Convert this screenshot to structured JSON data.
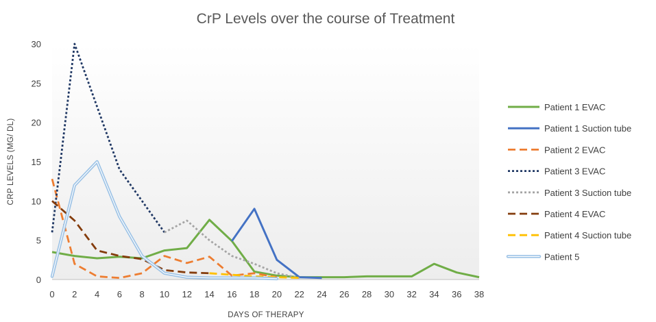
{
  "chart_data": {
    "type": "line",
    "title": "CrP Levels over the course of Treatment",
    "xlabel": "DAYS OF THERAPY",
    "ylabel": "CRP LEVELS (MG/ DL)",
    "xlim": [
      0,
      38
    ],
    "ylim": [
      0,
      30
    ],
    "x_ticks": [
      "0",
      "2",
      "4",
      "6",
      "8",
      "10",
      "12",
      "14",
      "16",
      "18",
      "20",
      "22",
      "24",
      "26",
      "28",
      "30",
      "32",
      "34",
      "36",
      "38"
    ],
    "y_ticks": [
      "0",
      "5",
      "10",
      "15",
      "20",
      "25",
      "30"
    ],
    "grid": false,
    "legend_position": "right",
    "series": [
      {
        "name": "Patient 1 EVAC",
        "color": "#70ad47",
        "style": "solid",
        "points": [
          [
            0,
            3.5
          ],
          [
            2,
            3.0
          ],
          [
            4,
            2.7
          ],
          [
            6,
            2.9
          ],
          [
            8,
            2.7
          ],
          [
            10,
            3.7
          ],
          [
            12,
            4.0
          ],
          [
            14,
            7.6
          ],
          [
            16,
            4.9
          ],
          [
            18,
            1.0
          ],
          [
            20,
            0.5
          ],
          [
            22,
            0.3
          ],
          [
            24,
            0.3
          ],
          [
            26,
            0.3
          ],
          [
            28,
            0.4
          ],
          [
            30,
            0.4
          ],
          [
            32,
            0.4
          ],
          [
            34,
            2.0
          ],
          [
            36,
            0.9
          ],
          [
            38,
            0.3
          ]
        ]
      },
      {
        "name": "Patient 1 Suction tube",
        "color": "#4472c4",
        "style": "solid",
        "points": [
          [
            16,
            4.9
          ],
          [
            18,
            9.0
          ],
          [
            20,
            2.5
          ],
          [
            22,
            0.3
          ],
          [
            24,
            0.2
          ]
        ]
      },
      {
        "name": "Patient 2 EVAC",
        "color": "#ed7d31",
        "style": "dash",
        "points": [
          [
            0,
            12.8
          ],
          [
            2,
            2.0
          ],
          [
            4,
            0.4
          ],
          [
            6,
            0.2
          ],
          [
            8,
            0.8
          ],
          [
            10,
            3.0
          ],
          [
            12,
            2.1
          ],
          [
            14,
            2.9
          ],
          [
            16,
            0.5
          ],
          [
            18,
            0.8
          ],
          [
            20,
            0.3
          ]
        ]
      },
      {
        "name": "Patient 3 EVAC",
        "color": "#203864",
        "style": "dot",
        "points": [
          [
            0,
            6.0
          ],
          [
            2,
            30.0
          ],
          [
            4,
            22.0
          ],
          [
            6,
            14.0
          ],
          [
            8,
            10.0
          ],
          [
            10,
            6.0
          ]
        ]
      },
      {
        "name": "Patient 3 Suction tube",
        "color": "#a5a5a5",
        "style": "dot",
        "points": [
          [
            10,
            6.0
          ],
          [
            12,
            7.5
          ],
          [
            14,
            5.0
          ],
          [
            16,
            3.0
          ],
          [
            18,
            2.0
          ],
          [
            20,
            0.8
          ],
          [
            22,
            0.2
          ]
        ]
      },
      {
        "name": "Patient 4 EVAC",
        "color": "#843c0c",
        "style": "dash",
        "points": [
          [
            0,
            10.0
          ],
          [
            2,
            7.5
          ],
          [
            4,
            3.7
          ],
          [
            6,
            3.0
          ],
          [
            8,
            2.6
          ],
          [
            10,
            1.2
          ],
          [
            12,
            0.9
          ],
          [
            14,
            0.8
          ]
        ]
      },
      {
        "name": "Patient 4 Suction tube",
        "color": "#ffc000",
        "style": "dash",
        "points": [
          [
            14,
            0.8
          ],
          [
            16,
            0.6
          ],
          [
            18,
            0.4
          ],
          [
            20,
            0.3
          ],
          [
            22,
            0.2
          ]
        ]
      },
      {
        "name": "Patient 5",
        "color": "#9dc3e6",
        "style": "double",
        "points": [
          [
            0,
            0.4
          ],
          [
            2,
            12.0
          ],
          [
            4,
            15.0
          ],
          [
            6,
            8.0
          ],
          [
            8,
            3.0
          ],
          [
            10,
            0.8
          ],
          [
            12,
            0.3
          ],
          [
            14,
            0.2
          ],
          [
            16,
            0.2
          ],
          [
            18,
            0.2
          ],
          [
            20,
            0.1
          ]
        ]
      }
    ]
  }
}
